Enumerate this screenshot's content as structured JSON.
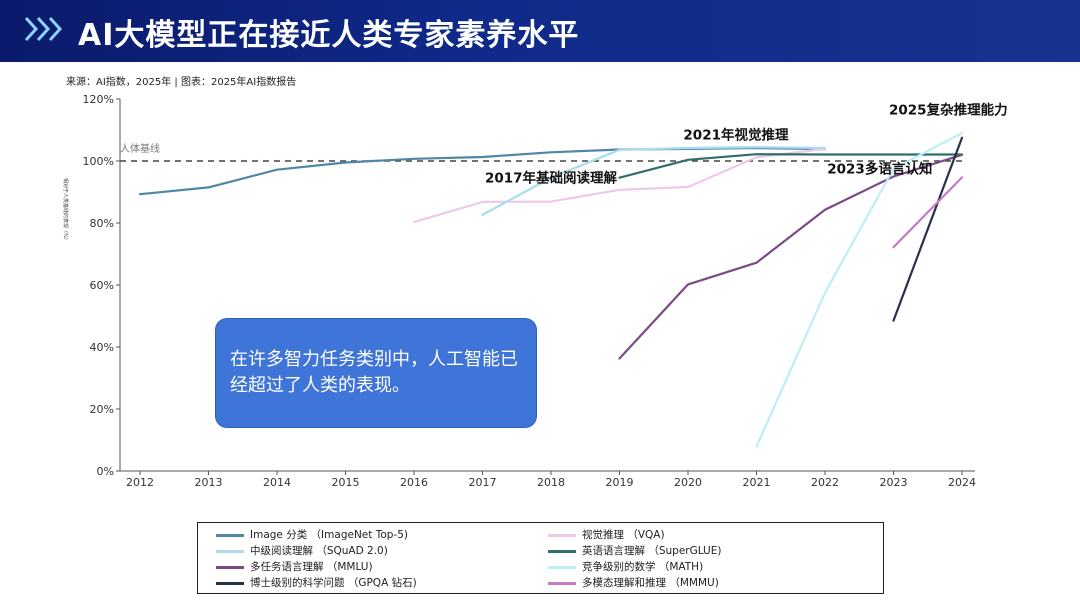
{
  "header": {
    "title": "AI大模型正在接近人类专家素养水平",
    "chevron_icon": "double-chevron-right-icon"
  },
  "source_note": "来源：AI指数，2025年 | 图表：2025年AI指数报告",
  "callout": {
    "text": "在许多智力任务类别中，人工智能已经超过了人类的表现。"
  },
  "chart_data": {
    "type": "line",
    "title": "",
    "xlabel": "",
    "ylabel": "相对于人类基线的表现（%）",
    "x": [
      2012,
      2013,
      2014,
      2015,
      2016,
      2017,
      2018,
      2019,
      2020,
      2021,
      2022,
      2023,
      2024
    ],
    "x_tick_labels": [
      "2012",
      "2013",
      "2014",
      "2015",
      "2016",
      "2017",
      "2018",
      "2019",
      "2020",
      "2021",
      "2022",
      "2023",
      "2024"
    ],
    "ylim": [
      0,
      120
    ],
    "y_ticks": [
      0,
      20,
      40,
      60,
      80,
      100,
      120
    ],
    "y_tick_labels": [
      "0%",
      "20%",
      "40%",
      "60%",
      "80%",
      "100%",
      "120%"
    ],
    "baseline": {
      "value": 100,
      "label": "人体基线"
    },
    "annotations": [
      {
        "text": "2017年基础阅读理解",
        "x": 2018,
        "y": 93
      },
      {
        "text": "2021年视觉推理",
        "x": 2020.7,
        "y": 107
      },
      {
        "text": "2025复杂推理能力",
        "x": 2023.8,
        "y": 115
      },
      {
        "text": "2023多语言认知",
        "x": 2022.8,
        "y": 96
      }
    ],
    "series": [
      {
        "name": "Image 分类 （ImageNet Top-5)",
        "color": "#4f88a6",
        "points": [
          [
            2012,
            89.3
          ],
          [
            2013,
            91.5
          ],
          [
            2014,
            97.2
          ],
          [
            2015,
            99.5
          ],
          [
            2016,
            100.7
          ],
          [
            2017,
            101.3
          ],
          [
            2018,
            102.8
          ],
          [
            2019,
            103.7
          ],
          [
            2020,
            103.9
          ],
          [
            2021,
            104.2
          ],
          [
            2022,
            103.8
          ]
        ]
      },
      {
        "name": "视觉推理 （VQA)",
        "color": "#f0c8ea",
        "points": [
          [
            2016,
            80.3
          ],
          [
            2017,
            86.8
          ],
          [
            2018,
            86.9
          ],
          [
            2019,
            90.7
          ],
          [
            2020,
            91.6
          ],
          [
            2021,
            101.2
          ],
          [
            2022,
            103.9
          ]
        ]
      },
      {
        "name": "中级阅读理解 （SQuAD 2.0)",
        "color": "#a9dcef",
        "points": [
          [
            2017,
            82.6
          ],
          [
            2018,
            94.6
          ],
          [
            2019,
            103.6
          ],
          [
            2020,
            104.2
          ],
          [
            2021,
            104.5
          ],
          [
            2022,
            104.2
          ]
        ]
      },
      {
        "name": "英语语言理解 （SuperGLUE)",
        "color": "#2f6e6a",
        "points": [
          [
            2019,
            94.6
          ],
          [
            2020,
            100.4
          ],
          [
            2021,
            102.2
          ],
          [
            2022,
            102.1
          ],
          [
            2023,
            102.1
          ],
          [
            2024,
            102.1
          ]
        ]
      },
      {
        "name": "多任务语言理解 （MMLU)",
        "color": "#7a4a86",
        "points": [
          [
            2019,
            36.3
          ],
          [
            2020,
            60.2
          ],
          [
            2021,
            67.2
          ],
          [
            2022,
            84.3
          ],
          [
            2023,
            95.0
          ],
          [
            2024,
            102.0
          ]
        ]
      },
      {
        "name": "竞争级别的数学 （MATH)",
        "color": "#bdeef6",
        "points": [
          [
            2021,
            7.9
          ],
          [
            2022,
            57.5
          ],
          [
            2023,
            97.5
          ],
          [
            2024,
            109.0
          ]
        ]
      },
      {
        "name": "博士级别的科学问题 （GPQA 钻石)",
        "color": "#26324a",
        "points": [
          [
            2023,
            48.5
          ],
          [
            2024,
            107.5
          ]
        ]
      },
      {
        "name": "多模态理解和推理 （MMMU)",
        "color": "#c47cc4",
        "points": [
          [
            2023,
            72.2
          ],
          [
            2024,
            94.7
          ]
        ]
      }
    ],
    "legend_order": [
      0,
      1,
      2,
      3,
      4,
      5,
      6,
      7
    ],
    "legend_position": "bottom"
  }
}
